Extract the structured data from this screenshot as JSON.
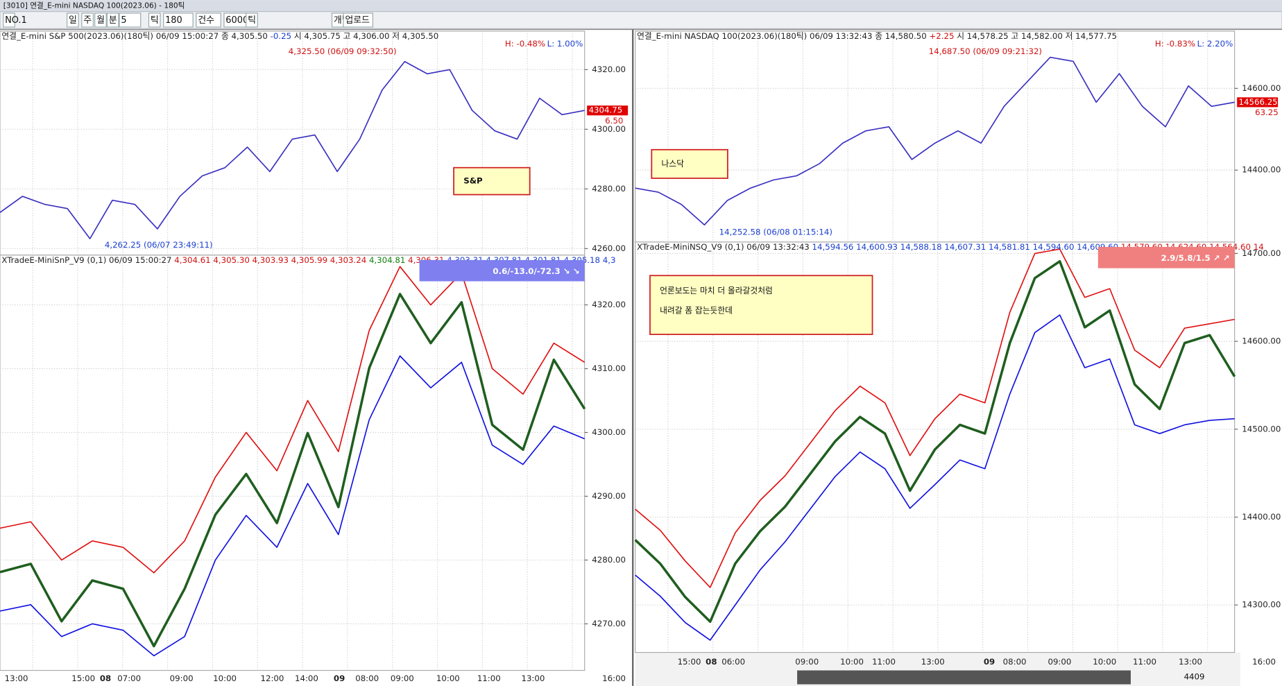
{
  "window": {
    "title": "[3010] 연결_E-mini NASDAQ 100(2023.06) - 180틱"
  },
  "toolbar": {
    "items": [
      "NO.1",
      "일",
      "주",
      "월",
      "분",
      "5",
      "틱",
      "180",
      "건수",
      "6000",
      "틱",
      "개별",
      "업로드"
    ]
  },
  "status": {
    "count": "4409"
  },
  "chart_data": [
    {
      "type": "line",
      "header": [
        {
          "text": "연결_E-mini S&P 500(2023.06)(180틱) 06/09 15:00:27   종 4,305.50",
          "color": "#222222"
        },
        {
          "text": " -0.25",
          "color": "#1a3fd0"
        },
        {
          "text": "   시 4,305.75 고 4,306.00 저 4,305.50",
          "color": "#222222"
        }
      ],
      "high_low": [
        "H: -0.48%",
        "L: 1.00%"
      ],
      "annotations": [
        "4,325.50 (06/09 09:32:50)",
        "4,262.25 (06/07 23:49:11)"
      ],
      "price_tag": [
        "4304.75",
        "6.50"
      ],
      "note": [
        "S&P"
      ],
      "ylim": [
        4257.8,
        4332.9
      ],
      "yticks": [
        {
          "value": 4320,
          "label": "4320.00"
        },
        {
          "value": 4300,
          "label": "4300.00"
        },
        {
          "value": 4280,
          "label": "4280.00"
        },
        {
          "value": 4260,
          "label": "4260.00"
        }
      ],
      "series": [
        {
          "color": "#3a2fc0",
          "values": [
            4272.1,
            4277.5,
            4274.8,
            4273.4,
            4263.3,
            4276.2,
            4274.8,
            4266.6,
            4277.5,
            4284.4,
            4287.1,
            4294.0,
            4285.8,
            4296.7,
            4298.1,
            4285.8,
            4296.7,
            4313.2,
            4322.7,
            4318.6,
            4320.0,
            4306.3,
            4299.5,
            4296.7,
            4310.4,
            4304.9,
            4306.3
          ]
        }
      ]
    },
    {
      "type": "line",
      "header": [
        {
          "text": "XTradeE-MiniSnP_V9  (0,1) 06/09 15:00:27",
          "color": "#222222"
        },
        {
          "text": " 4,304.61 4,305.30 4,303.93 4,305.99 4,303.24",
          "color": "#d01010"
        },
        {
          "text": " 4,304.81",
          "color": "#108010"
        },
        {
          "text": " 4,306.31",
          "color": "#d01010"
        },
        {
          "text": " 4,303.31 4,307.81 4,301.81 4,305.18 4,3",
          "color": "#1a3fd0"
        }
      ],
      "banner": "0.6/-13.0/-72.3 ↘ ↘",
      "banner_color": "#7f7ff0",
      "ylim": [
        4262.7,
        4327.8
      ],
      "yticks": [
        {
          "value": 4320,
          "label": "4320.00"
        },
        {
          "value": 4310,
          "label": "4310.00"
        },
        {
          "value": 4300,
          "label": "4300.00"
        },
        {
          "value": 4290,
          "label": "4290.00"
        },
        {
          "value": 4280,
          "label": "4280.00"
        },
        {
          "value": 4270,
          "label": "4270.00"
        }
      ],
      "x_axis_labels": [
        "13:00",
        "15:00",
        "08",
        "07:00",
        "09:00",
        "10:00",
        "12:00",
        "14:00",
        "09",
        "08:00",
        "09:00",
        "10:00",
        "11:00",
        "13:00",
        "16:00"
      ],
      "series": [
        {
          "color": "#e01010",
          "values": [
            4285,
            4286,
            4280,
            4283,
            4282,
            4278,
            4283,
            4293,
            4300,
            4294,
            4305,
            4297,
            4316,
            4326,
            4320,
            4325,
            4310,
            4306,
            4314,
            4311
          ]
        },
        {
          "color": "#1f5e1f",
          "values": [
            4278.1,
            4279.4,
            4270.4,
            4276.8,
            4275.5,
            4266.5,
            4275.5,
            4287.1,
            4293.5,
            4285.8,
            4299.9,
            4288.3,
            4310.1,
            4321.7,
            4314.0,
            4320.4,
            4301.2,
            4297.3,
            4311.4,
            4303.7
          ]
        },
        {
          "color": "#1010e0",
          "values": [
            4272,
            4273,
            4268,
            4270,
            4269,
            4265,
            4268,
            4280,
            4287,
            4282,
            4292,
            4284,
            4302,
            4312,
            4307,
            4311,
            4298,
            4295,
            4301,
            4299
          ]
        }
      ]
    },
    {
      "type": "line",
      "header": [
        {
          "text": "연결_E-mini NASDAQ 100(2023.06)(180틱) 06/09 13:32:43   종 14,580.50",
          "color": "#222222"
        },
        {
          "text": " +2.25",
          "color": "#d01010"
        },
        {
          "text": "   시 14,578.25 고 14,582.00 저 14,577.75",
          "color": "#222222"
        }
      ],
      "high_low": [
        "H: -0.83%",
        "L: 2.20%"
      ],
      "annotations": [
        "14,687.50 (06/09 09:21:32)",
        "14,252.58 (06/08 01:15:14)"
      ],
      "price_tag": [
        "14566.25",
        "63.25"
      ],
      "note": [
        "나스닥"
      ],
      "ylim": [
        14224,
        14740
      ],
      "yticks": [
        {
          "value": 14600,
          "label": "14600.00"
        },
        {
          "value": 14400,
          "label": "14400.00"
        }
      ],
      "series": [
        {
          "color": "#3a2fc0",
          "values": [
            14356,
            14346,
            14316,
            14266,
            14326,
            14356,
            14376,
            14386,
            14416,
            14466,
            14496,
            14506,
            14426,
            14466,
            14496,
            14466,
            14556,
            14616,
            14676,
            14666,
            14566,
            14636,
            14556,
            14506,
            14606,
            14556,
            14566
          ]
        }
      ]
    },
    {
      "type": "line",
      "header": [
        {
          "text": "XTradeE-MiniNSQ_V9  (0,1) 06/09 13:32:43",
          "color": "#222222"
        },
        {
          "text": " 14,594.56 14,600.93 14,588.18 14,607.31 14,581.81 14,594.60 14,609.60",
          "color": "#1a3fd0"
        },
        {
          "text": " 14,579.60 14,624.60 14,564.60 14",
          "color": "#d01010"
        }
      ],
      "banner": "2.9/5.8/1.5 ↗ ↗",
      "banner_color": "#f07f7f",
      "note": [
        "언론보도는 마치 더 올라갈것처럼",
        "내려갈 폼 잡는듯한데"
      ],
      "ylim": [
        14246,
        14713
      ],
      "yticks": [
        {
          "value": 14700,
          "label": "14700.00"
        },
        {
          "value": 14600,
          "label": "14600.00"
        },
        {
          "value": 14500,
          "label": "14500.00"
        },
        {
          "value": 14400,
          "label": "14400.00"
        },
        {
          "value": 14300,
          "label": "14300.00"
        }
      ],
      "x_axis_labels": [
        "15:00",
        "08",
        "06:00",
        "09:00",
        "10:00",
        "11:00",
        "13:00",
        "09",
        "08:00",
        "09:00",
        "10:00",
        "11:00",
        "13:00",
        "16:00"
      ],
      "series": [
        {
          "color": "#e01010",
          "values": [
            14409,
            14385,
            14350,
            14320,
            14382,
            14419,
            14447,
            14484,
            14521,
            14549,
            14530,
            14470,
            14512,
            14540,
            14530,
            14633,
            14700,
            14705,
            14650,
            14660,
            14590,
            14570,
            14615,
            14620,
            14625
          ]
        },
        {
          "color": "#1f5e1f",
          "values": [
            14374,
            14347,
            14309,
            14281,
            14347,
            14384,
            14412,
            14449,
            14486,
            14514,
            14495,
            14430,
            14477,
            14505,
            14495,
            14598,
            14672,
            14691,
            14616,
            14635,
            14551,
            14523,
            14598,
            14607,
            14560
          ]
        },
        {
          "color": "#1010e0",
          "values": [
            14334,
            14310,
            14280,
            14260,
            14300,
            14340,
            14372,
            14409,
            14446,
            14474,
            14455,
            14410,
            14437,
            14465,
            14455,
            14540,
            14610,
            14630,
            14570,
            14580,
            14505,
            14495,
            14505,
            14510,
            14512
          ]
        }
      ]
    }
  ]
}
